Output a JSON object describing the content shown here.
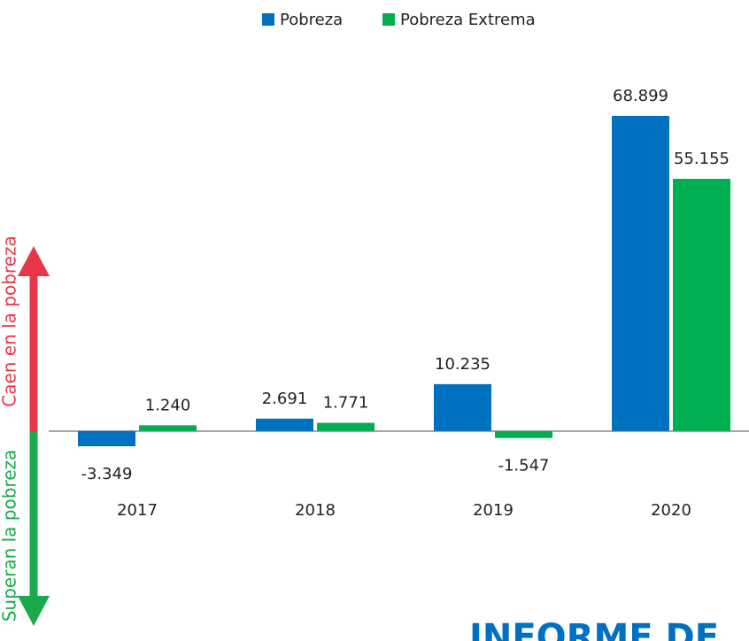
{
  "chart_data": {
    "type": "bar",
    "categories": [
      "2017",
      "2018",
      "2019",
      "2020"
    ],
    "series": [
      {
        "name": "Pobreza",
        "color": "#0070c0",
        "values": [
          -3349,
          2691,
          10235,
          68899
        ],
        "value_labels": [
          "-3.349",
          "2.691",
          "10.235",
          "68.899"
        ]
      },
      {
        "name": "Pobreza Extrema",
        "color": "#00b050",
        "values": [
          1240,
          1771,
          -1547,
          55155
        ],
        "value_labels": [
          "1.240",
          "1.771",
          "-1.547",
          "55.155"
        ]
      }
    ],
    "ylim": [
      -20000,
      72000
    ],
    "annotations": [
      "Caen en la pobreza",
      "Superan la pobreza",
      "INFORME DE"
    ]
  }
}
